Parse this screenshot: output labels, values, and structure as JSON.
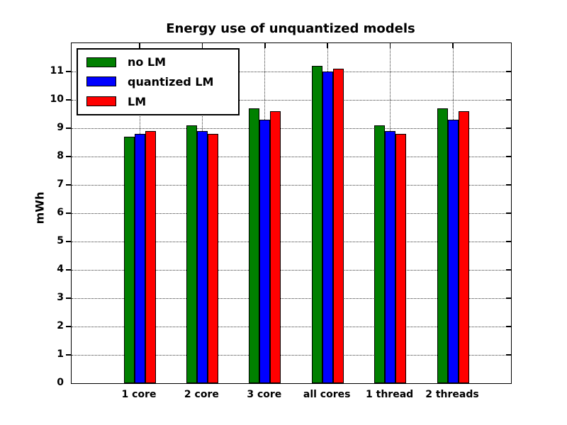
{
  "chart_data": {
    "type": "bar",
    "title": "Energy use of unquantized models",
    "xlabel": "",
    "ylabel": "mWh",
    "categories": [
      "1 core",
      "2 core",
      "3 core",
      "all cores",
      "1 thread",
      "2 threads"
    ],
    "series": [
      {
        "name": "no LM",
        "color": "#008000",
        "values": [
          8.7,
          9.1,
          9.7,
          11.2,
          9.1,
          9.7
        ]
      },
      {
        "name": "quantized LM",
        "color": "#0000ff",
        "values": [
          8.8,
          8.9,
          9.3,
          11.0,
          8.9,
          9.3
        ]
      },
      {
        "name": "LM",
        "color": "#ff0000",
        "values": [
          8.9,
          8.8,
          9.6,
          11.1,
          8.8,
          9.6
        ]
      }
    ],
    "ylim": [
      0,
      12
    ],
    "yticks": [
      0,
      1,
      2,
      3,
      4,
      5,
      6,
      7,
      8,
      9,
      10,
      11
    ],
    "grid": "dotted, horizontal at yticks and vertical at group centers",
    "legend_position": "upper left",
    "bar_edge_color": "#000000",
    "background_color": "#ffffff",
    "text_color": "#000000"
  }
}
